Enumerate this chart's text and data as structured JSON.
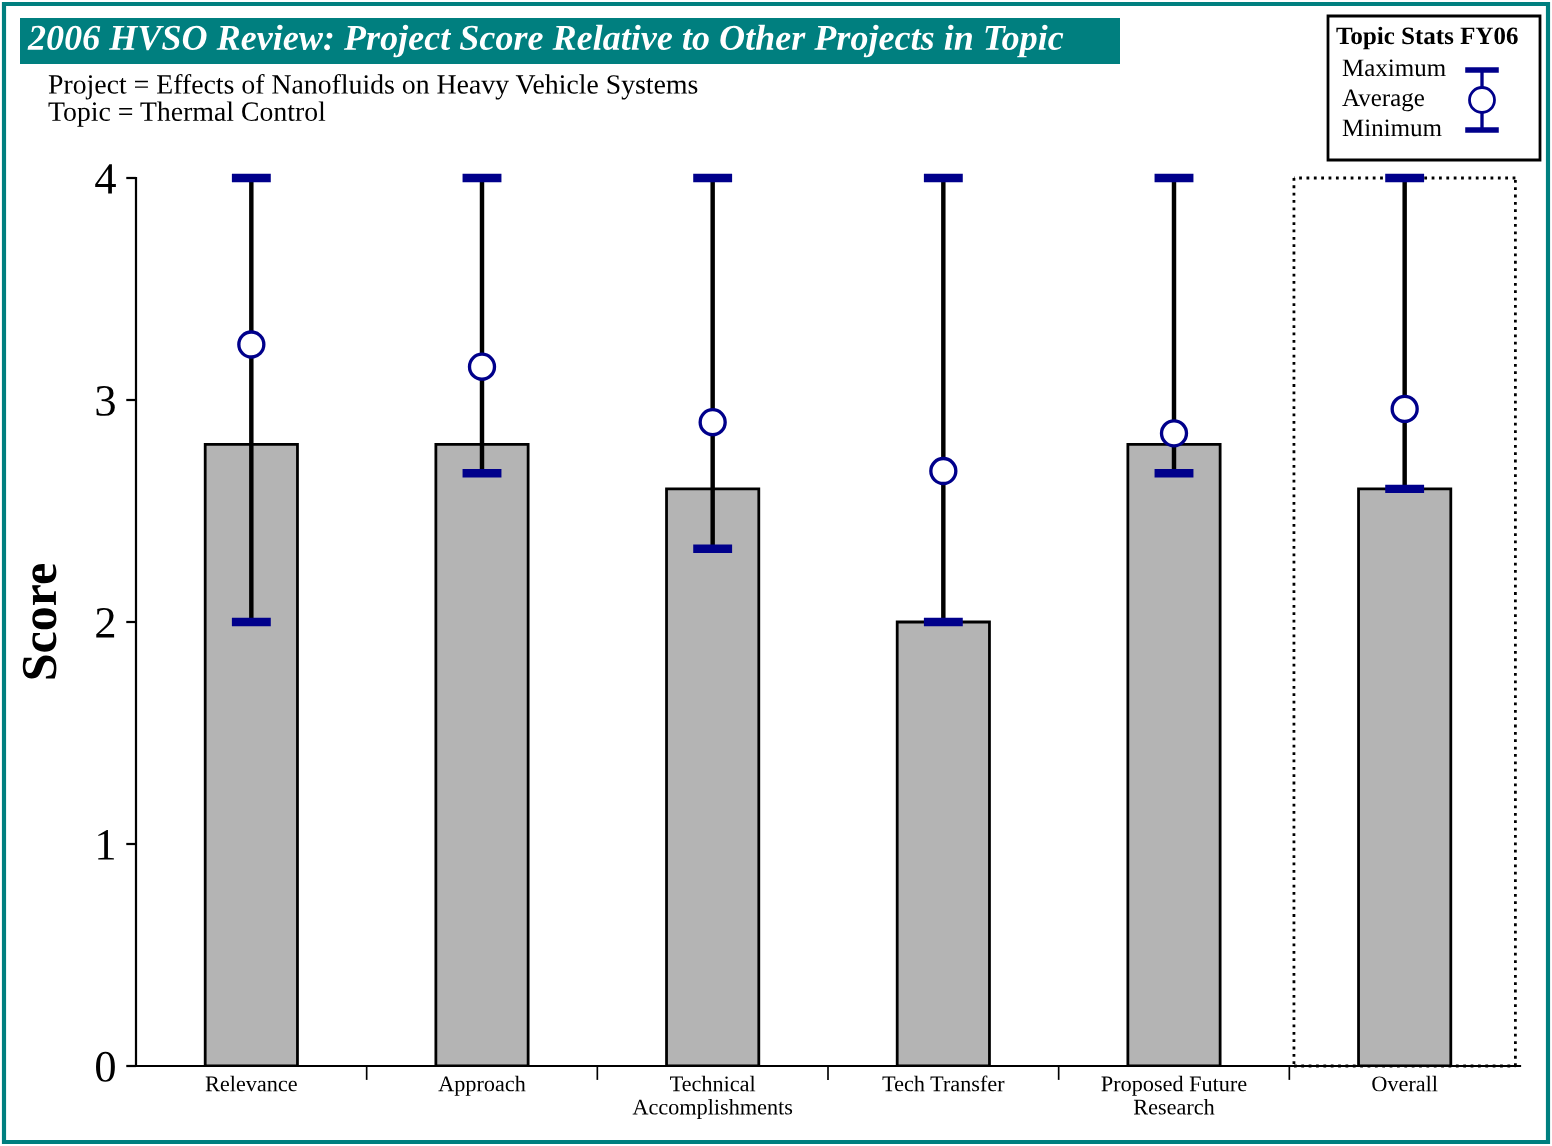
{
  "chart_data": {
    "type": "bar",
    "title": "2006 HVSO Review: Project Score Relative to Other Projects in Topic",
    "subtitle": "Project = Effects of Nanofluids on Heavy Vehicle Systems\nTopic = Thermal Control",
    "ylabel": "Score",
    "legend_title": "Topic Stats FY06",
    "annotations": [
      "Maximum",
      "Minimum"
    ],
    "categories": [
      "Relevance",
      "Approach",
      "Technical\nAccomplishments",
      "Tech Transfer",
      "Proposed Future\nResearch",
      "Overall"
    ],
    "series": [
      {
        "color": "#b4b4b4",
        "values": [
          2.8,
          2.8,
          2.6,
          2.0,
          2.8,
          2.6
        ]
      },
      {
        "type": "scatter",
        "name": "Average",
        "color": "#00008b",
        "marker": "circle",
        "values": [
          3.25,
          3.15,
          2.9,
          2.68,
          2.85,
          2.96
        ],
        "errors": [
          [
            2.0,
            4.0
          ],
          [
            2.67,
            4.0
          ],
          [
            2.33,
            4.0
          ],
          [
            2.0,
            4.0
          ],
          [
            2.67,
            4.0
          ],
          [
            2.6,
            4.0
          ]
        ]
      }
    ],
    "ylim": [
      0,
      4
    ],
    "yticks": [
      0,
      1,
      2,
      3,
      4
    ],
    "grid": false,
    "legend": "top right"
  }
}
